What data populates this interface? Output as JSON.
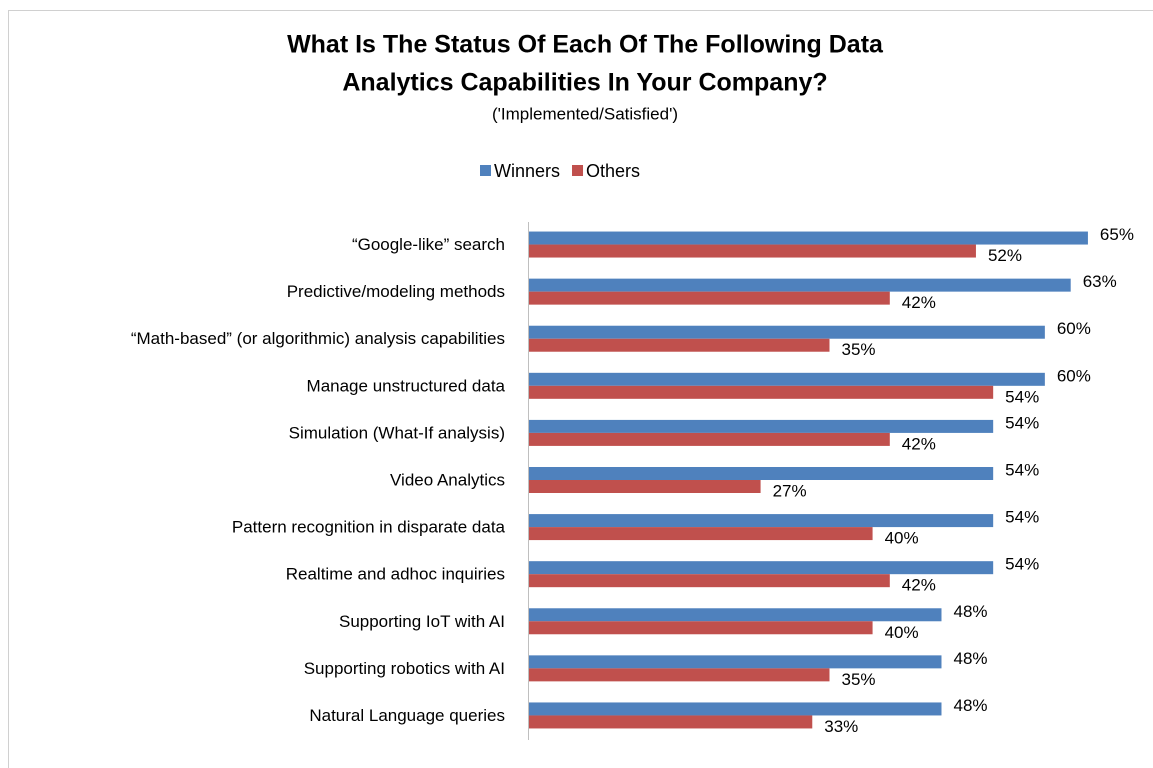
{
  "chart_data": {
    "type": "hbar",
    "title_lines": [
      "What Is The Status Of Each Of The Following Data",
      "Analytics Capabilities In Your Company?"
    ],
    "subtitle": "('Implemented/Satisfied')",
    "categories": [
      "“Google-like” search",
      "Predictive/modeling methods",
      "“Math-based” (or algorithmic) analysis capabilities",
      "Manage unstructured data",
      "Simulation (What-If analysis)",
      "Video Analytics",
      "Pattern recognition in disparate data",
      "Realtime and adhoc inquiries",
      "Supporting IoT with AI",
      "Supporting robotics with AI",
      "Natural Language queries"
    ],
    "series": [
      {
        "name": "Winners",
        "color": "#4f81bd",
        "values": [
          65,
          63,
          60,
          60,
          54,
          54,
          54,
          54,
          48,
          48,
          48
        ],
        "value_labels": [
          "65%",
          "63%",
          "60%",
          "60%",
          "54%",
          "54%",
          "54%",
          "54%",
          "48%",
          "48%",
          "48%"
        ]
      },
      {
        "name": "Others",
        "color": "#c0504d",
        "values": [
          52,
          42,
          35,
          54,
          42,
          27,
          40,
          42,
          40,
          35,
          33
        ],
        "value_labels": [
          "52%",
          "42%",
          "35%",
          "54%",
          "42%",
          "27%",
          "40%",
          "42%",
          "40%",
          "35%",
          "33%"
        ]
      }
    ],
    "xlim": [
      0,
      70
    ],
    "legend": "top"
  }
}
